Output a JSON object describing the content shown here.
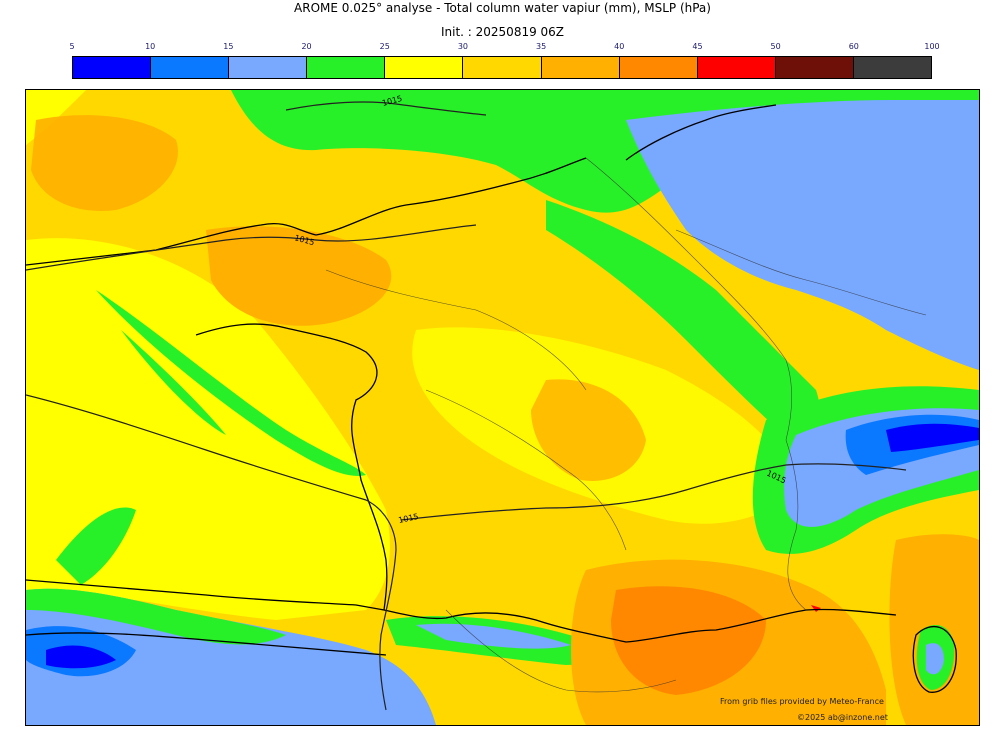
{
  "title": "AROME 0.025° analyse - Total column water vapiur (mm), MSLP (hPa)",
  "init": "Init. : 20250819 06Z",
  "colorbar": {
    "ticks": [
      "5",
      "10",
      "15",
      "20",
      "25",
      "30",
      "35",
      "40",
      "45",
      "50",
      "60",
      "100"
    ],
    "colors": [
      "#0000ff",
      "#0a78ff",
      "#78a8ff",
      "#28f028",
      "#ffff00",
      "#ffd800",
      "#ffb000",
      "#ff8800",
      "#ff0000",
      "#6e1008",
      "#3c3c3c"
    ]
  },
  "isobar_labels": [
    "1015",
    "1015",
    "1015",
    "1015"
  ],
  "credits": {
    "source": "From grib files provided by Meteo-France",
    "copyright": "©2025 ab@inzone.net"
  }
}
